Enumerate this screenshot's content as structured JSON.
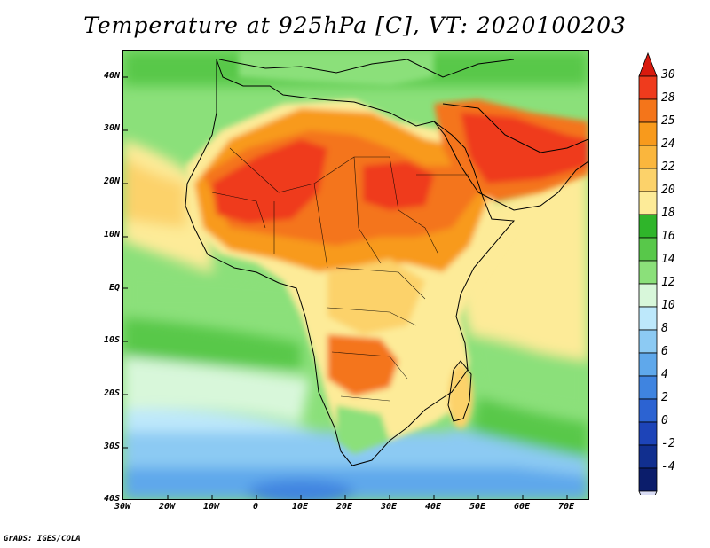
{
  "title": "Temperature at 925hPa [C], VT: 2020100203",
  "footer": "GrADS: IGES/COLA",
  "lat_labels": [
    "40N",
    "30N",
    "20N",
    "10N",
    "EQ",
    "10S",
    "20S",
    "30S",
    "40S"
  ],
  "lon_labels": [
    "30W",
    "20W",
    "10W",
    "0",
    "10E",
    "20E",
    "30E",
    "40E",
    "50E",
    "60E",
    "70E"
  ],
  "colorbar": {
    "labels": [
      "30",
      "28",
      "25",
      "24",
      "22",
      "20",
      "18",
      "16",
      "14",
      "12",
      "10",
      "8",
      "6",
      "4",
      "2",
      "0",
      "-2",
      "-4"
    ],
    "colors": [
      "#ef3b1d",
      "#f4751a",
      "#f89a1c",
      "#fab63d",
      "#fcd26a",
      "#fdeb98",
      "#2fb52a",
      "#58c84a",
      "#8be07a",
      "#d8f7da",
      "#bde8fb",
      "#8ccaf3",
      "#5fa8eb",
      "#3f84e0",
      "#2c63d2",
      "#1d44b8",
      "#112f8f",
      "#0b1d6b"
    ],
    "top_color": "#d81a0e",
    "bottom_color": "#d9dcf5"
  },
  "map": {
    "projection": "lat-lon",
    "lon_range": [
      -30,
      75
    ],
    "lat_range": [
      -40,
      45
    ],
    "field": "temperature at 925hPa",
    "units": "C"
  }
}
